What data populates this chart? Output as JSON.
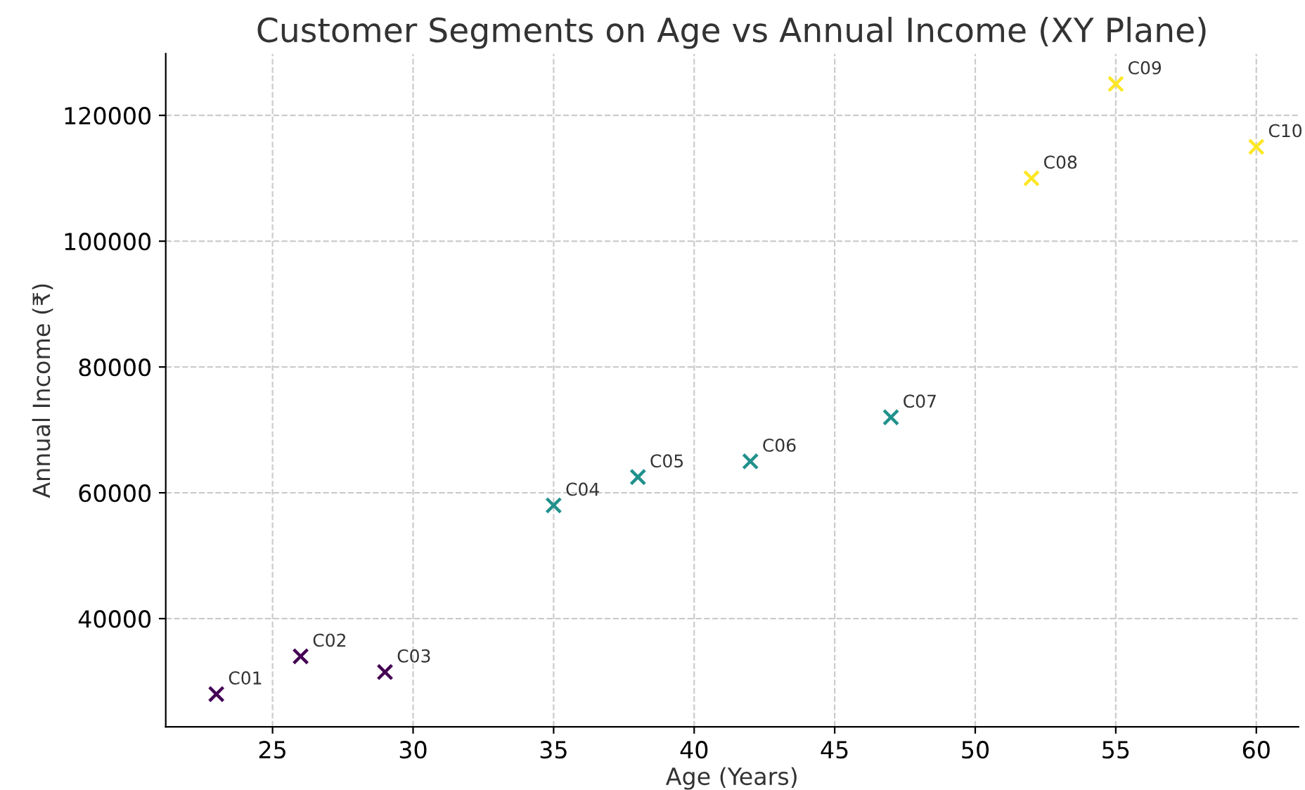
{
  "chart_data": {
    "type": "scatter",
    "title": "Customer Segments on Age vs Annual Income (XY Plane)",
    "xlabel": "Age (Years)",
    "ylabel": "Annual Income (₹)",
    "series": [
      {
        "color": "#440154",
        "x": [
          23,
          26,
          29
        ],
        "values": [
          28000,
          34000,
          31500
        ]
      },
      {
        "color": "#21918c",
        "x": [
          35,
          38,
          42,
          47
        ],
        "values": [
          58000,
          62500,
          65000,
          72000
        ]
      },
      {
        "color": "#fde725",
        "x": [
          52,
          55,
          60
        ],
        "values": [
          110000,
          125000,
          115000
        ]
      }
    ],
    "annotations": [
      {
        "text": "C01",
        "x": 23,
        "y": 28000
      },
      {
        "text": "C02",
        "x": 26,
        "y": 34000
      },
      {
        "text": "C03",
        "x": 29,
        "y": 31500
      },
      {
        "text": "C04",
        "x": 35,
        "y": 58000
      },
      {
        "text": "C05",
        "x": 38,
        "y": 62500
      },
      {
        "text": "C06",
        "x": 42,
        "y": 65000
      },
      {
        "text": "C07",
        "x": 47,
        "y": 72000
      },
      {
        "text": "C08",
        "x": 52,
        "y": 110000
      },
      {
        "text": "C09",
        "x": 55,
        "y": 125000
      },
      {
        "text": "C10",
        "x": 60,
        "y": 115000
      }
    ],
    "xlim": [
      21.2,
      61.5
    ],
    "ylim": [
      22800,
      129800
    ],
    "xticks": [
      25,
      30,
      35,
      40,
      45,
      50,
      55,
      60
    ],
    "yticks": [
      40000,
      60000,
      80000,
      100000,
      120000
    ],
    "grid": true,
    "marker": "cross",
    "legend": false
  }
}
